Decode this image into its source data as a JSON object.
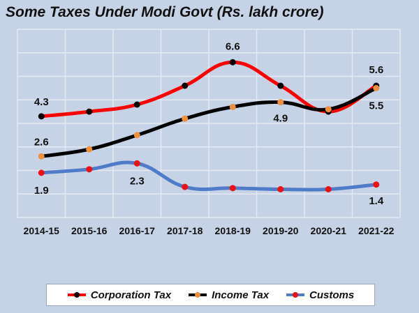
{
  "chart_data": {
    "type": "line",
    "title": "Some Taxes Under Modi Govt (Rs. lakh crore)",
    "categories": [
      "2014-15",
      "2015-16",
      "2016-17",
      "2017-18",
      "2018-19",
      "2019-20",
      "2020-21",
      "2021-22"
    ],
    "ylim": [
      0,
      8
    ],
    "grid": true,
    "legend_position": "bottom",
    "series": [
      {
        "name": "Corporation Tax",
        "line_color": "#ff0000",
        "marker_color": "#000000",
        "values": [
          4.3,
          4.5,
          4.8,
          5.6,
          6.6,
          5.6,
          4.5,
          5.6
        ],
        "labels": [
          {
            "index": 0,
            "text": "4.3"
          },
          {
            "index": 4,
            "text": "6.6"
          },
          {
            "index": 7,
            "text": "5.6"
          }
        ]
      },
      {
        "name": "Income Tax",
        "line_color": "#000000",
        "marker_color": "#f0903a",
        "values": [
          2.6,
          2.9,
          3.5,
          4.2,
          4.7,
          4.9,
          4.6,
          5.5
        ],
        "labels": [
          {
            "index": 0,
            "text": "2.6"
          },
          {
            "index": 5,
            "text": "4.9"
          },
          {
            "index": 7,
            "text": "5.5"
          }
        ]
      },
      {
        "name": "Customs",
        "line_color": "#4f7bc8",
        "marker_color": "#ee1111",
        "values": [
          1.9,
          2.05,
          2.3,
          1.3,
          1.25,
          1.2,
          1.2,
          1.4
        ],
        "labels": [
          {
            "index": 0,
            "text": "1.9"
          },
          {
            "index": 2,
            "text": "2.3"
          },
          {
            "index": 7,
            "text": "1.4"
          }
        ]
      }
    ]
  }
}
